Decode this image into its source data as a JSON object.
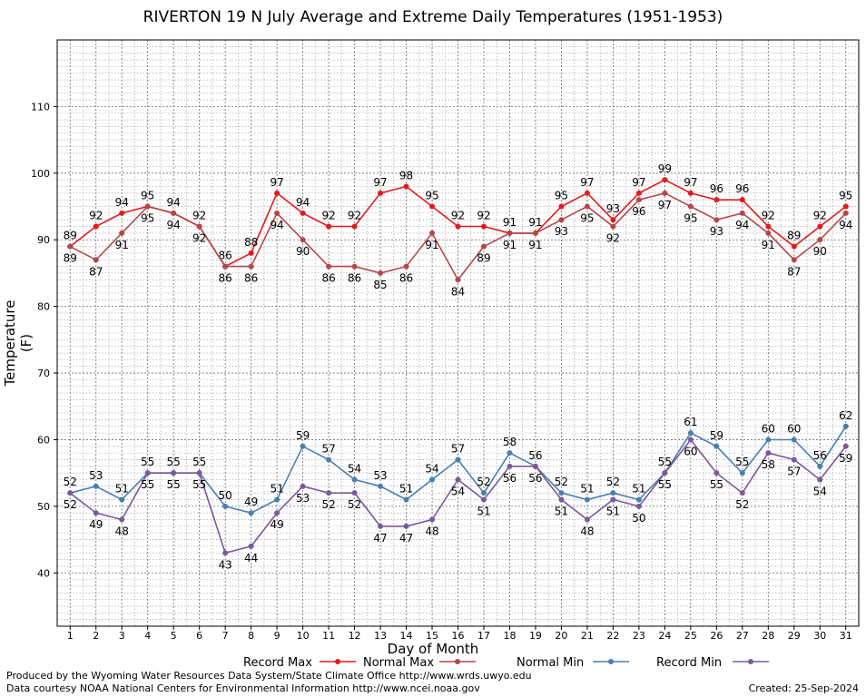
{
  "chart_data": {
    "type": "line",
    "title": "RIVERTON 19 N July Average and Extreme Daily Temperatures (1951-1953)",
    "xlabel": "Day of Month",
    "ylabel": "Temperature (F)",
    "x": [
      1,
      2,
      3,
      4,
      5,
      6,
      7,
      8,
      9,
      10,
      11,
      12,
      13,
      14,
      15,
      16,
      17,
      18,
      19,
      20,
      21,
      22,
      23,
      24,
      25,
      26,
      27,
      28,
      29,
      30,
      31
    ],
    "xlim": [
      0.5,
      31.5
    ],
    "ylim": [
      32,
      120
    ],
    "yticks": [
      40,
      50,
      60,
      70,
      80,
      90,
      100,
      110
    ],
    "grid": true,
    "legend_position": "bottom",
    "series": [
      {
        "name": "Record Max",
        "color": "#e41a1c",
        "values": [
          89,
          92,
          94,
          95,
          94,
          92,
          86,
          88,
          97,
          94,
          92,
          92,
          97,
          98,
          95,
          92,
          92,
          91,
          91,
          95,
          97,
          93,
          97,
          99,
          97,
          96,
          96,
          92,
          89,
          92,
          95
        ]
      },
      {
        "name": "Normal Max",
        "color": "#b5474b",
        "values": [
          89,
          87,
          91,
          95,
          94,
          92,
          86,
          86,
          94,
          90,
          86,
          86,
          85,
          86,
          91,
          84,
          89,
          91,
          91,
          93,
          95,
          92,
          96,
          97,
          95,
          93,
          94,
          91,
          87,
          90,
          94
        ]
      },
      {
        "name": "Normal Min",
        "color": "#4a7fb0",
        "values": [
          52,
          53,
          51,
          55,
          55,
          55,
          50,
          49,
          51,
          59,
          57,
          54,
          53,
          51,
          54,
          57,
          52,
          58,
          56,
          52,
          51,
          52,
          51,
          55,
          61,
          59,
          55,
          60,
          60,
          56,
          62
        ]
      },
      {
        "name": "Record Min",
        "color": "#7b5a9a",
        "values": [
          52,
          49,
          48,
          55,
          55,
          55,
          43,
          44,
          49,
          53,
          52,
          52,
          47,
          47,
          48,
          54,
          51,
          56,
          56,
          51,
          48,
          51,
          50,
          55,
          60,
          55,
          52,
          58,
          57,
          54,
          59
        ]
      }
    ]
  },
  "footer": {
    "produced_by": "Produced by the Wyoming Water Resources Data System/State Climate Office http://www.wrds.uwyo.edu",
    "courtesy": "Data courtesy NOAA National Centers for Environmental Information http://www.ncei.noaa.gov",
    "created": "Created:  25-Sep-2024"
  }
}
